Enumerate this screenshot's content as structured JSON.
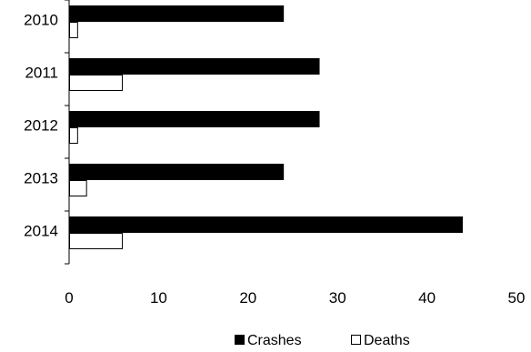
{
  "chart_data": {
    "type": "bar",
    "orientation": "horizontal",
    "categories": [
      "2010",
      "2011",
      "2012",
      "2013",
      "2014"
    ],
    "series": [
      {
        "name": "Crashes",
        "values": [
          24,
          28,
          28,
          24,
          44
        ],
        "color": "#000000",
        "fill": "#000000"
      },
      {
        "name": "Deaths",
        "values": [
          1,
          6,
          1,
          2,
          6
        ],
        "color": "#000000",
        "fill": "#ffffff"
      }
    ],
    "xlim": [
      0,
      50
    ],
    "xticks": [
      "0",
      "10",
      "20",
      "30",
      "40",
      "50"
    ],
    "title": "",
    "xlabel": "",
    "ylabel": "",
    "grid": false,
    "legend_position": "bottom"
  }
}
